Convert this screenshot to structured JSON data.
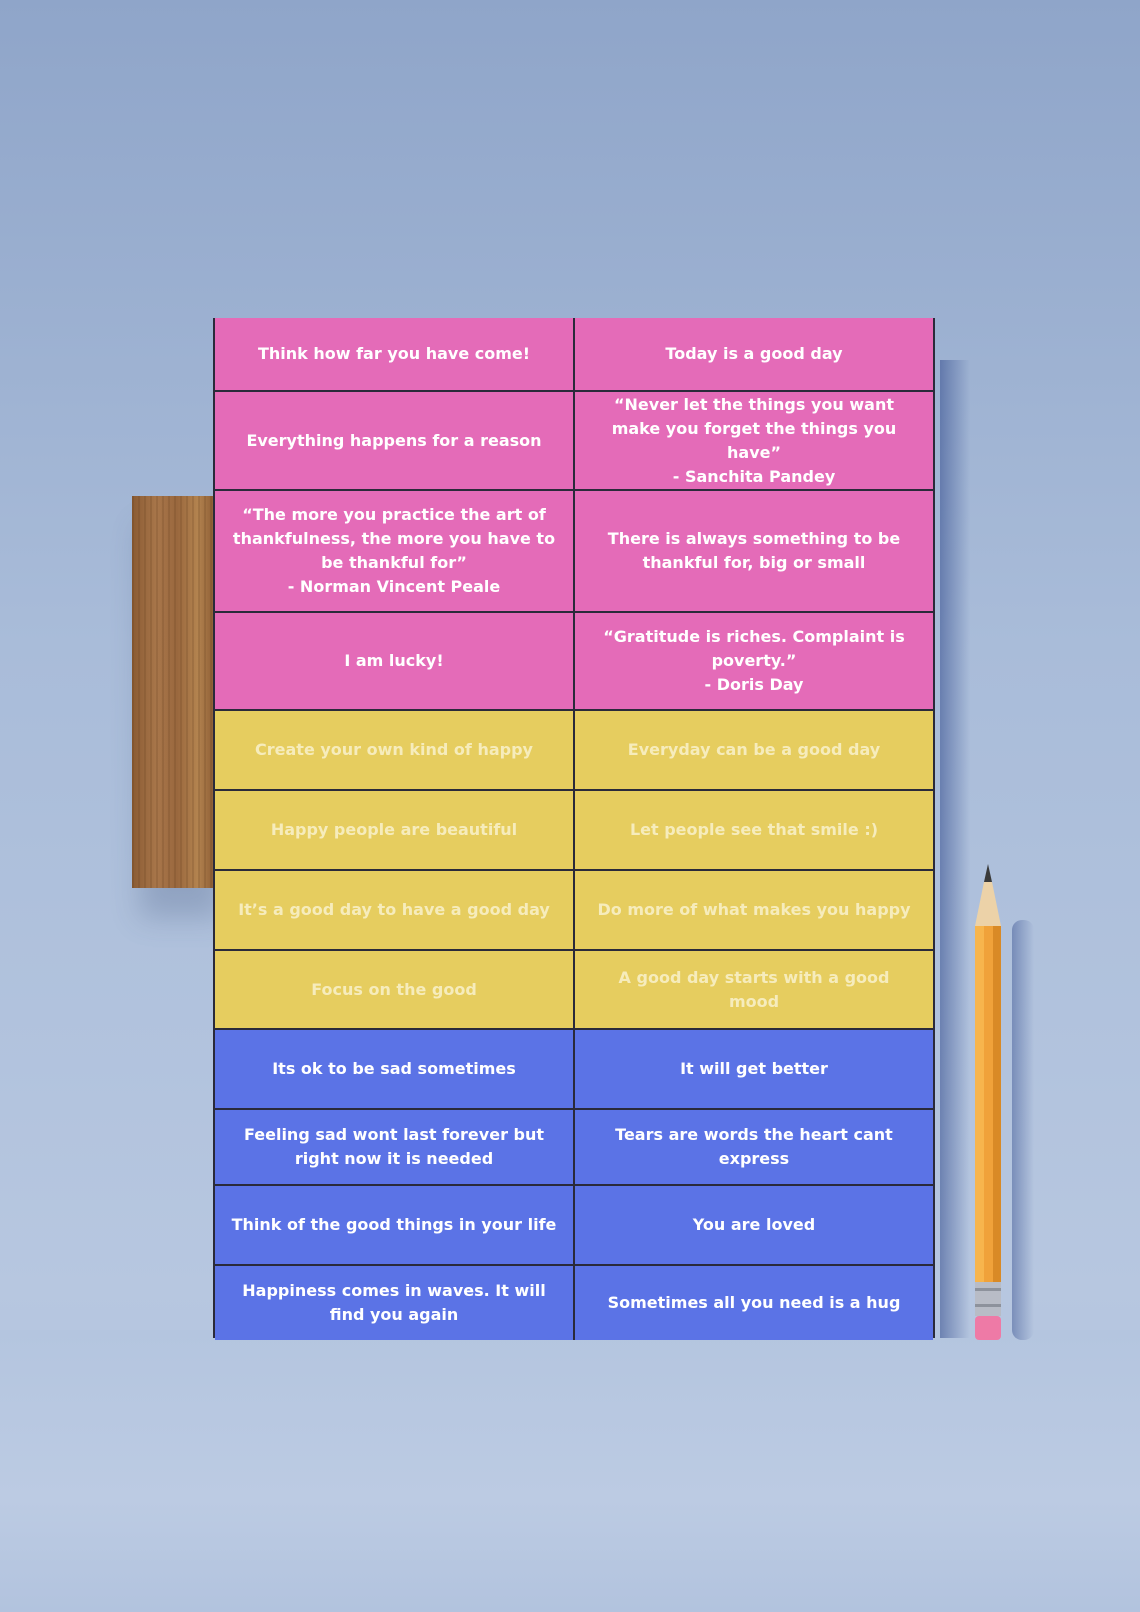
{
  "cards": [
    {
      "text": "Think how far you have come!",
      "color": "pink"
    },
    {
      "text": "Today is a good day",
      "color": "pink"
    },
    {
      "text": "Everything happens for a reason",
      "color": "pink"
    },
    {
      "text": "“Never let the things you want make you forget the things you have”\n- Sanchita Pandey",
      "color": "pink"
    },
    {
      "text": "“The more you practice the art of thankfulness, the more you have to be thankful for”\n- Norman Vincent Peale",
      "color": "pink"
    },
    {
      "text": "There is always something to be thankful for, big or small",
      "color": "pink"
    },
    {
      "text": "I am lucky!",
      "color": "pink"
    },
    {
      "text": "“Gratitude is riches. Complaint is poverty.”\n-  Doris Day",
      "color": "pink"
    },
    {
      "text": "Create your own kind of happy",
      "color": "yellow"
    },
    {
      "text": "Everyday can be a good day",
      "color": "yellow"
    },
    {
      "text": "Happy people are beautiful",
      "color": "yellow"
    },
    {
      "text": "Let people see that smile :)",
      "color": "yellow"
    },
    {
      "text": "It’s a good day to have a good day",
      "color": "yellow"
    },
    {
      "text": "Do more of what makes you happy",
      "color": "yellow"
    },
    {
      "text": "Focus on the good",
      "color": "yellow"
    },
    {
      "text": "A good day starts with a good mood",
      "color": "yellow"
    },
    {
      "text": "Its ok to be sad sometimes",
      "color": "blue"
    },
    {
      "text": "It will get better",
      "color": "blue"
    },
    {
      "text": "Feeling sad wont last forever but right now it is needed",
      "color": "blue"
    },
    {
      "text": "Tears are words the heart cant express",
      "color": "blue"
    },
    {
      "text": "Think of the good things in your life",
      "color": "blue"
    },
    {
      "text": "You are loved",
      "color": "blue"
    },
    {
      "text": "Happiness comes in waves. It will find you again",
      "color": "blue"
    },
    {
      "text": "Sometimes all you need is a hug",
      "color": "blue"
    }
  ],
  "colors": {
    "pink": "#e46bb8",
    "yellow": "#e6cd5f",
    "blue": "#5b73e6",
    "background": "#a9bcd9",
    "grid_lines": "#2a2a3a"
  },
  "props": {
    "left": "wood-block-icon",
    "right": "pencil-icon"
  }
}
